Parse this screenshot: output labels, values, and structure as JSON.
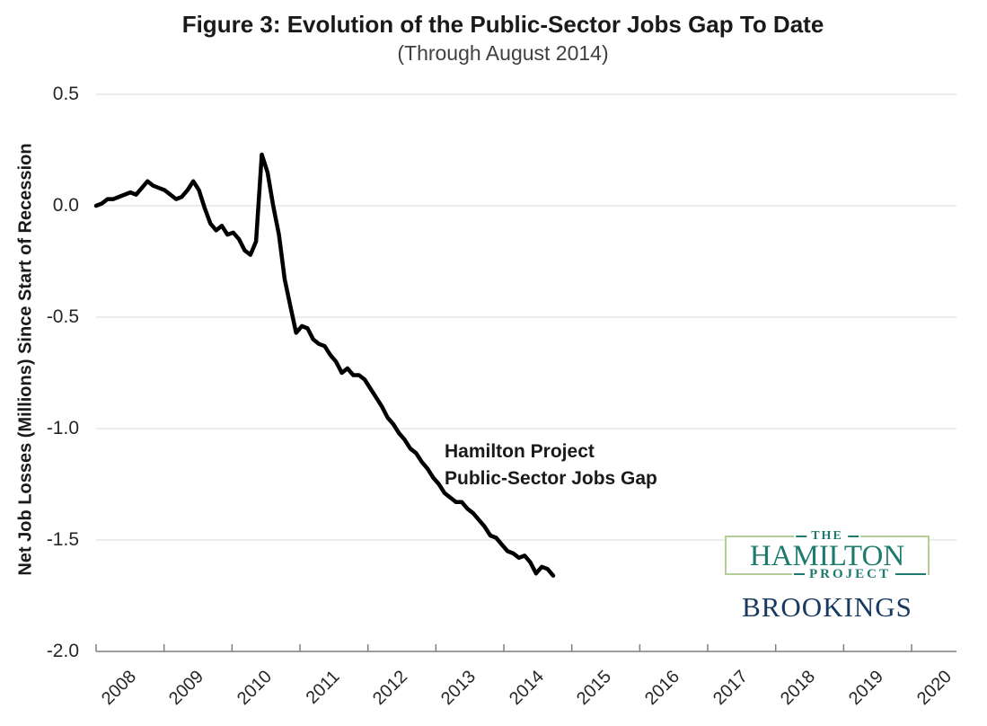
{
  "figure": {
    "title": "Figure 3: Evolution of the Public-Sector Jobs Gap To Date",
    "subtitle": "(Through August 2014)"
  },
  "annotation": {
    "line1": "Hamilton Project",
    "line2": "Public-Sector Jobs Gap"
  },
  "logo": {
    "the": "THE",
    "hamilton": "HAMILTON",
    "project": "PROJECT",
    "brookings": "BROOKINGS",
    "teal": "#1d7b6e",
    "border_green": "#b5cd97",
    "navy": "#17395f"
  },
  "chart_data": {
    "type": "line",
    "title": "Figure 3: Evolution of the Public-Sector Jobs Gap To Date",
    "subtitle": "(Through August 2014)",
    "xlabel": "",
    "ylabel": "Net Job Losses (Millions) Since Start of Recession",
    "ylim": [
      -2.0,
      0.5
    ],
    "yticks": [
      0.5,
      0.0,
      -0.5,
      -1.0,
      -1.5,
      -2.0
    ],
    "xticks": [
      "2008",
      "2009",
      "2010",
      "2011",
      "2012",
      "2013",
      "2014",
      "2015",
      "2016",
      "2017",
      "2018",
      "2019",
      "2020"
    ],
    "grid": true,
    "legend_position": "none",
    "line_color": "#000000",
    "gridline_color": "#d9d9d9",
    "axis_color": "#7f7f7f",
    "series": [
      {
        "name": "Hamilton Project Public-Sector Jobs Gap",
        "start": "2007-12",
        "end": "2014-08",
        "frequency": "monthly",
        "values": [
          0.0,
          0.01,
          0.03,
          0.03,
          0.04,
          0.05,
          0.06,
          0.05,
          0.08,
          0.11,
          0.09,
          0.08,
          0.07,
          0.05,
          0.03,
          0.04,
          0.07,
          0.11,
          0.07,
          -0.01,
          -0.08,
          -0.11,
          -0.09,
          -0.13,
          -0.12,
          -0.15,
          -0.2,
          -0.22,
          -0.16,
          0.23,
          0.15,
          0.0,
          -0.13,
          -0.33,
          -0.45,
          -0.57,
          -0.54,
          -0.55,
          -0.6,
          -0.62,
          -0.63,
          -0.67,
          -0.7,
          -0.75,
          -0.73,
          -0.76,
          -0.76,
          -0.78,
          -0.82,
          -0.86,
          -0.9,
          -0.95,
          -0.98,
          -1.02,
          -1.05,
          -1.09,
          -1.11,
          -1.15,
          -1.18,
          -1.22,
          -1.25,
          -1.29,
          -1.31,
          -1.33,
          -1.33,
          -1.36,
          -1.38,
          -1.41,
          -1.44,
          -1.48,
          -1.49,
          -1.52,
          -1.55,
          -1.56,
          -1.58,
          -1.57,
          -1.6,
          -1.65,
          -1.62,
          -1.63,
          -1.66
        ]
      }
    ]
  }
}
